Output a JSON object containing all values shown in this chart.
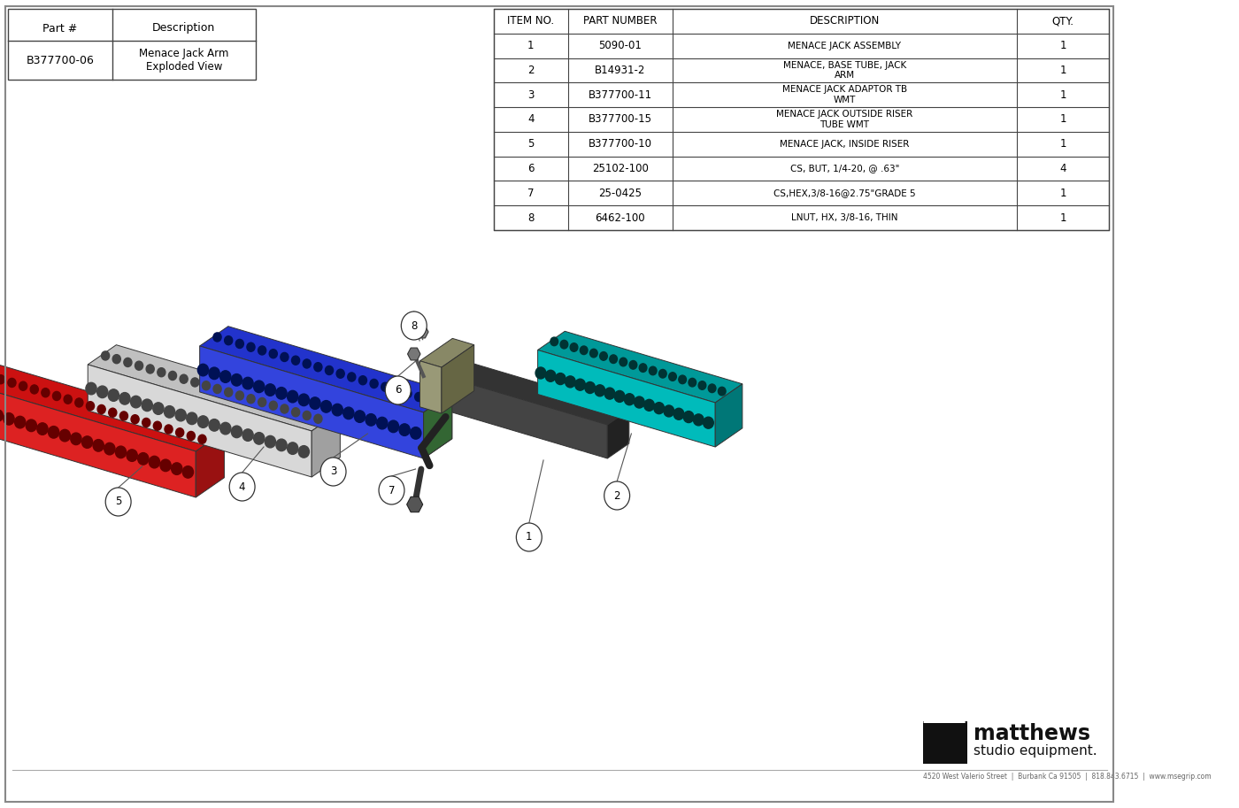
{
  "background_color": "#ffffff",
  "title_table": {
    "part_num": "B377700-06",
    "description": "Menace Jack Arm\nExploded View",
    "col1_header": "Part #",
    "col2_header": "Description"
  },
  "parts_table": {
    "headers": [
      "ITEM NO.",
      "PART NUMBER",
      "DESCRIPTION",
      "QTY."
    ],
    "rows": [
      [
        "1",
        "5090-01",
        "MENACE JACK ASSEMBLY",
        "1"
      ],
      [
        "2",
        "B14931-2",
        "MENACE, BASE TUBE, JACK\nARM",
        "1"
      ],
      [
        "3",
        "B377700-11",
        "MENACE JACK ADAPTOR TB\nWMT",
        "1"
      ],
      [
        "4",
        "B377700-15",
        "MENACE JACK OUTSIDE RISER\nTUBE WMT",
        "1"
      ],
      [
        "5",
        "B377700-10",
        "MENACE JACK, INSIDE RISER",
        "1"
      ],
      [
        "6",
        "25102-100",
        "CS, BUT, 1/4-20, @ .63\"",
        "4"
      ],
      [
        "7",
        "25-0425",
        "CS,HEX,3/8-16@2.75\"GRADE 5",
        "1"
      ],
      [
        "8",
        "6462-100",
        "LNUT, HX, 3/8-16, THIN",
        "1"
      ]
    ]
  },
  "footer_text": "4520 West Valerio Street  |  Burbank Ca 91505  |  818.843.6715  |  www.msegrip.com"
}
